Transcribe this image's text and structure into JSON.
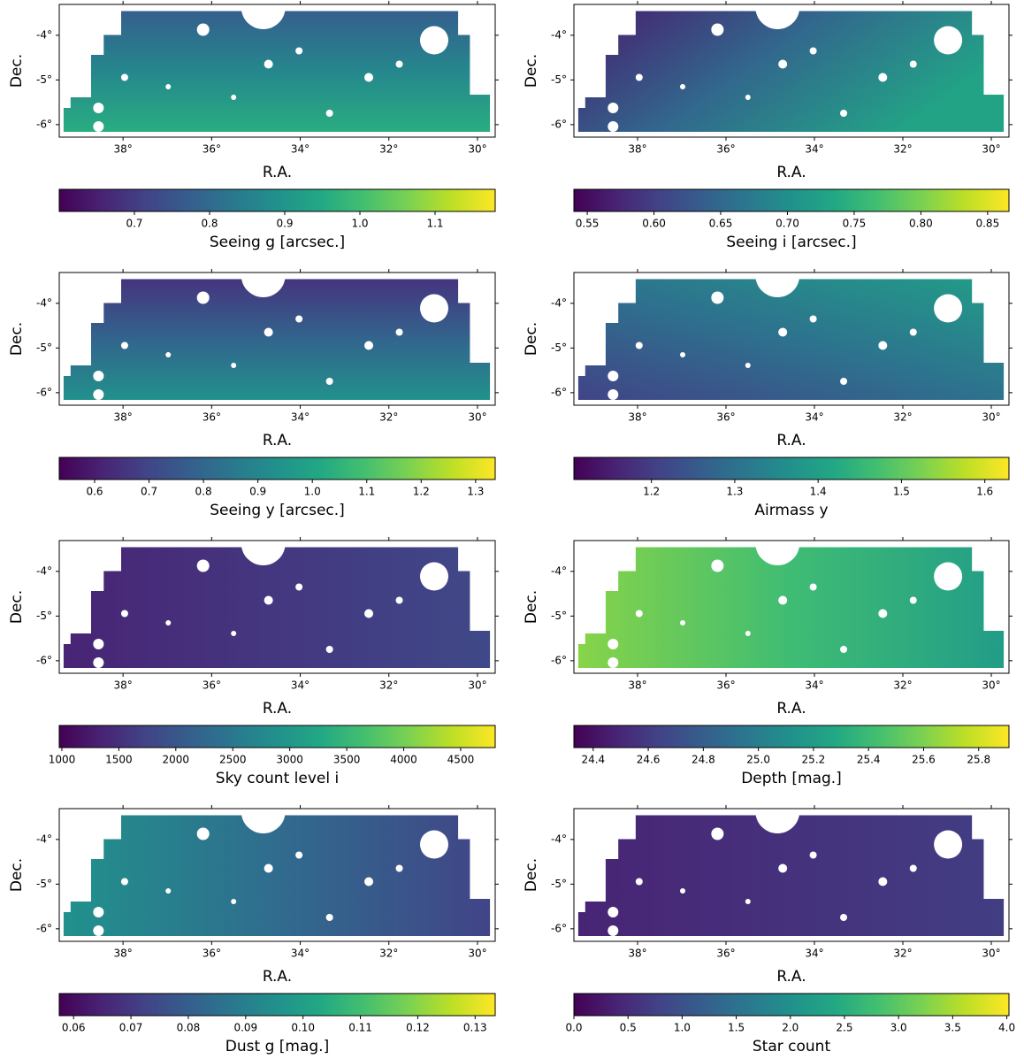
{
  "chart_data": [
    {
      "type": "map",
      "xlabel": "R.A.",
      "ylabel": "Dec.",
      "xlim": [
        39.44,
        29.6
      ],
      "xticks": [
        {
          "value": 38,
          "label": "38°"
        },
        {
          "value": 36,
          "label": "36°"
        },
        {
          "value": 34,
          "label": "34°"
        },
        {
          "value": 32,
          "label": "32°"
        },
        {
          "value": 30,
          "label": "30°"
        }
      ],
      "ylim": [
        -6.28,
        -3.31
      ],
      "yticks": [
        {
          "value": -4,
          "label": "-4°"
        },
        {
          "value": -5,
          "label": "-5°"
        },
        {
          "value": -6,
          "label": "-6°"
        }
      ],
      "colorbar": {
        "label": "Seeing g [arcsec.]",
        "colormap": "viridis",
        "lim": [
          0.6,
          1.18
        ],
        "ticks": [
          0.7,
          0.8,
          0.9,
          {
            "value": 1,
            "label": "1.0"
          },
          1.1
        ]
      }
    },
    {
      "type": "map",
      "xlabel": "R.A.",
      "ylabel": "Dec.",
      "xlim": [
        39.44,
        29.6
      ],
      "xticks": [
        {
          "value": 38,
          "label": "38°"
        },
        {
          "value": 36,
          "label": "36°"
        },
        {
          "value": 34,
          "label": "34°"
        },
        {
          "value": 32,
          "label": "32°"
        },
        {
          "value": 30,
          "label": "30°"
        }
      ],
      "ylim": [
        -6.28,
        -3.31
      ],
      "yticks": [
        {
          "value": -4,
          "label": "-4°"
        },
        {
          "value": -5,
          "label": "-5°"
        },
        {
          "value": -6,
          "label": "-6°"
        }
      ],
      "colorbar": {
        "label": "Seeing i [arcsec.]",
        "colormap": "viridis",
        "lim": [
          0.54,
          0.866
        ],
        "ticks": [
          0.55,
          {
            "value": 0.6,
            "label": "0.60"
          },
          0.65,
          {
            "value": 0.7,
            "label": "0.70"
          },
          0.75,
          {
            "value": 0.8,
            "label": "0.80"
          },
          0.85
        ]
      }
    },
    {
      "type": "map",
      "xlabel": "R.A.",
      "ylabel": "Dec.",
      "xlim": [
        39.44,
        29.6
      ],
      "xticks": [
        {
          "value": 38,
          "label": "38°"
        },
        {
          "value": 36,
          "label": "36°"
        },
        {
          "value": 34,
          "label": "34°"
        },
        {
          "value": 32,
          "label": "32°"
        },
        {
          "value": 30,
          "label": "30°"
        }
      ],
      "ylim": [
        -6.28,
        -3.31
      ],
      "yticks": [
        {
          "value": -4,
          "label": "-4°"
        },
        {
          "value": -5,
          "label": "-5°"
        },
        {
          "value": -6,
          "label": "-6°"
        }
      ],
      "colorbar": {
        "label": "Seeing y [arcsec.]",
        "colormap": "viridis",
        "lim": [
          0.535,
          1.336
        ],
        "ticks": [
          0.6,
          0.7,
          0.8,
          0.9,
          {
            "value": 1,
            "label": "1.0"
          },
          1.1,
          1.2,
          1.3
        ]
      }
    },
    {
      "type": "map",
      "xlabel": "R.A.",
      "ylabel": "Dec.",
      "xlim": [
        39.44,
        29.6
      ],
      "xticks": [
        {
          "value": 38,
          "label": "38°"
        },
        {
          "value": 36,
          "label": "36°"
        },
        {
          "value": 34,
          "label": "34°"
        },
        {
          "value": 32,
          "label": "32°"
        },
        {
          "value": 30,
          "label": "30°"
        }
      ],
      "ylim": [
        -6.28,
        -3.31
      ],
      "yticks": [
        {
          "value": -4,
          "label": "-4°"
        },
        {
          "value": -5,
          "label": "-5°"
        },
        {
          "value": -6,
          "label": "-6°"
        }
      ],
      "colorbar": {
        "label": "Airmass y",
        "colormap": "viridis",
        "lim": [
          1.107,
          1.629
        ],
        "ticks": [
          1.2,
          1.3,
          1.4,
          1.5,
          1.6
        ]
      }
    },
    {
      "type": "map",
      "xlabel": "R.A.",
      "ylabel": "Dec.",
      "xlim": [
        39.44,
        29.6
      ],
      "xticks": [
        {
          "value": 38,
          "label": "38°"
        },
        {
          "value": 36,
          "label": "36°"
        },
        {
          "value": 34,
          "label": "34°"
        },
        {
          "value": 32,
          "label": "32°"
        },
        {
          "value": 30,
          "label": "30°"
        }
      ],
      "ylim": [
        -6.28,
        -3.31
      ],
      "yticks": [
        {
          "value": -4,
          "label": "-4°"
        },
        {
          "value": -5,
          "label": "-5°"
        },
        {
          "value": -6,
          "label": "-6°"
        }
      ],
      "colorbar": {
        "label": "Sky count level i",
        "colormap": "viridis",
        "lim": [
          977,
          4803
        ],
        "ticks": [
          1000,
          1500,
          2000,
          2500,
          3000,
          3500,
          4000,
          4500
        ]
      }
    },
    {
      "type": "map",
      "xlabel": "R.A.",
      "ylabel": "Dec.",
      "xlim": [
        39.44,
        29.6
      ],
      "xticks": [
        {
          "value": 38,
          "label": "38°"
        },
        {
          "value": 36,
          "label": "36°"
        },
        {
          "value": 34,
          "label": "34°"
        },
        {
          "value": 32,
          "label": "32°"
        },
        {
          "value": 30,
          "label": "30°"
        }
      ],
      "ylim": [
        -6.28,
        -3.31
      ],
      "yticks": [
        {
          "value": -4,
          "label": "-4°"
        },
        {
          "value": -5,
          "label": "-5°"
        },
        {
          "value": -6,
          "label": "-6°"
        }
      ],
      "colorbar": {
        "label": "Depth [mag.]",
        "colormap": "viridis",
        "lim": [
          24.33,
          25.91
        ],
        "ticks": [
          24.4,
          24.6,
          24.8,
          {
            "value": 25,
            "label": "25.0"
          },
          25.2,
          25.4,
          25.6,
          25.8
        ]
      }
    },
    {
      "type": "map",
      "xlabel": "R.A.",
      "ylabel": "Dec.",
      "xlim": [
        39.44,
        29.6
      ],
      "xticks": [
        {
          "value": 38,
          "label": "38°"
        },
        {
          "value": 36,
          "label": "36°"
        },
        {
          "value": 34,
          "label": "34°"
        },
        {
          "value": 32,
          "label": "32°"
        },
        {
          "value": 30,
          "label": "30°"
        }
      ],
      "ylim": [
        -6.28,
        -3.31
      ],
      "yticks": [
        {
          "value": -4,
          "label": "-4°"
        },
        {
          "value": -5,
          "label": "-5°"
        },
        {
          "value": -6,
          "label": "-6°"
        }
      ],
      "colorbar": {
        "label": "Dust g [mag.]",
        "colormap": "viridis",
        "lim": [
          0.0575,
          0.1335
        ],
        "ticks": [
          0.06,
          0.07,
          0.08,
          0.09,
          {
            "value": 0.1,
            "label": "0.10"
          },
          0.11,
          0.12,
          0.13
        ]
      }
    },
    {
      "type": "map",
      "xlabel": "R.A.",
      "ylabel": "Dec.",
      "xlim": [
        39.44,
        29.6
      ],
      "xticks": [
        {
          "value": 38,
          "label": "38°"
        },
        {
          "value": 36,
          "label": "36°"
        },
        {
          "value": 34,
          "label": "34°"
        },
        {
          "value": 32,
          "label": "32°"
        },
        {
          "value": 30,
          "label": "30°"
        }
      ],
      "ylim": [
        -6.28,
        -3.31
      ],
      "yticks": [
        {
          "value": -4,
          "label": "-4°"
        },
        {
          "value": -5,
          "label": "-5°"
        },
        {
          "value": -6,
          "label": "-6°"
        }
      ],
      "colorbar": {
        "label": "Star count",
        "colormap": "viridis",
        "lim": [
          0,
          4.02
        ],
        "ticks": [
          {
            "value": 0,
            "label": "0.0"
          },
          0.5,
          {
            "value": 1,
            "label": "1.0"
          },
          1.5,
          {
            "value": 2,
            "label": "2.0"
          },
          2.5,
          {
            "value": 3,
            "label": "3.0"
          },
          3.5,
          {
            "value": 4,
            "label": "4.0"
          }
        ]
      }
    }
  ]
}
